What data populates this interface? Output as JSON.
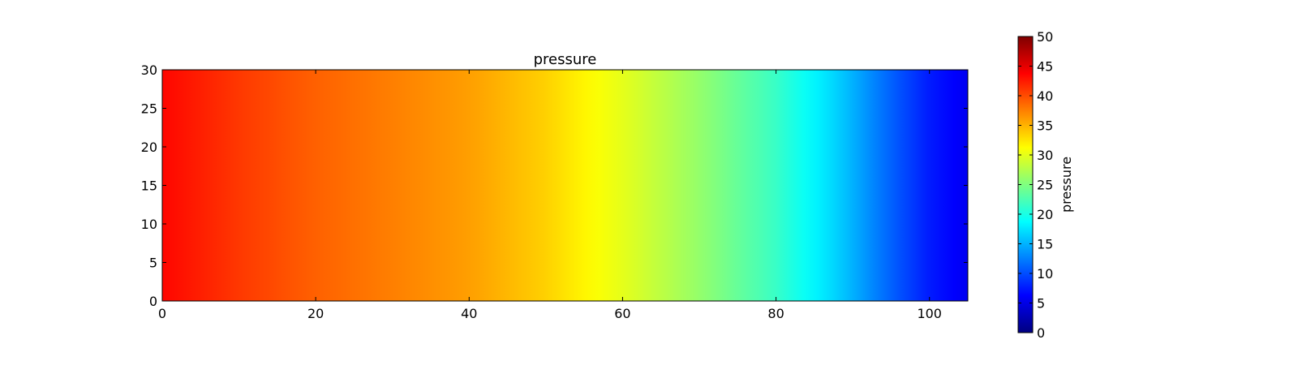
{
  "chart_data": {
    "type": "heatmap",
    "title": "pressure",
    "xlabel": "",
    "ylabel": "",
    "xlim": [
      0,
      105
    ],
    "ylim": [
      0,
      30
    ],
    "x_ticks": [
      0,
      20,
      40,
      60,
      80,
      100
    ],
    "x_tick_labels": [
      "0",
      "20",
      "40",
      "60",
      "80",
      "100"
    ],
    "y_ticks": [
      0,
      5,
      10,
      15,
      20,
      25,
      30
    ],
    "y_tick_labels": [
      "0",
      "5",
      "10",
      "15",
      "20",
      "25",
      "30"
    ],
    "colorbar": {
      "label": "pressure",
      "range": [
        0,
        50
      ],
      "ticks": [
        0,
        5,
        10,
        15,
        20,
        25,
        30,
        35,
        40,
        45,
        50
      ],
      "tick_labels": [
        "0",
        "5",
        "10",
        "15",
        "20",
        "25",
        "30",
        "35",
        "40",
        "45",
        "50"
      ],
      "colormap": "jet"
    },
    "field": {
      "description_axis": "x",
      "x": [
        0,
        10,
        20,
        30,
        40,
        50,
        57,
        60,
        70,
        80,
        88,
        95,
        100,
        105
      ],
      "values": [
        43.5,
        41,
        39,
        37.5,
        36,
        33.5,
        31,
        30,
        26,
        21.5,
        16.5,
        11,
        7.5,
        5.5
      ]
    },
    "grid": false,
    "legend": "none"
  }
}
